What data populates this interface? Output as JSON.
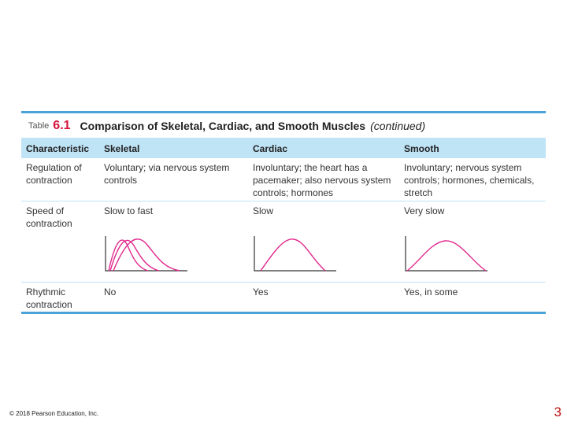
{
  "table": {
    "label": "Table",
    "number": "6.1",
    "title": "Comparison of Skeletal, Cardiac, and Smooth Muscles",
    "continued": "(continued)",
    "headers": [
      "Characteristic",
      "Skeletal",
      "Cardiac",
      "Smooth"
    ],
    "rows": [
      {
        "characteristic": "Regulation of contraction",
        "skeletal": "Voluntary; via nervous system controls",
        "cardiac": "Involuntary; the heart has a pacemaker; also nervous system controls; hormones",
        "smooth": "Involuntary; nervous system controls; hormones, chemicals, stretch"
      },
      {
        "characteristic": "Speed of contraction",
        "skeletal": "Slow to fast",
        "cardiac": "Slow",
        "smooth": "Very slow"
      },
      {
        "characteristic": "Rhythmic contraction",
        "skeletal": "No",
        "cardiac": "Yes",
        "smooth": "Yes, in some"
      }
    ]
  },
  "footer": {
    "copyright": "© 2018 Pearson Education, Inc.",
    "page_number": "3"
  },
  "colors": {
    "accent_blue": "#4aa3d6",
    "header_fill": "#bfe4f6",
    "title_red": "#d4143a",
    "curve_magenta": "#e0288c"
  }
}
